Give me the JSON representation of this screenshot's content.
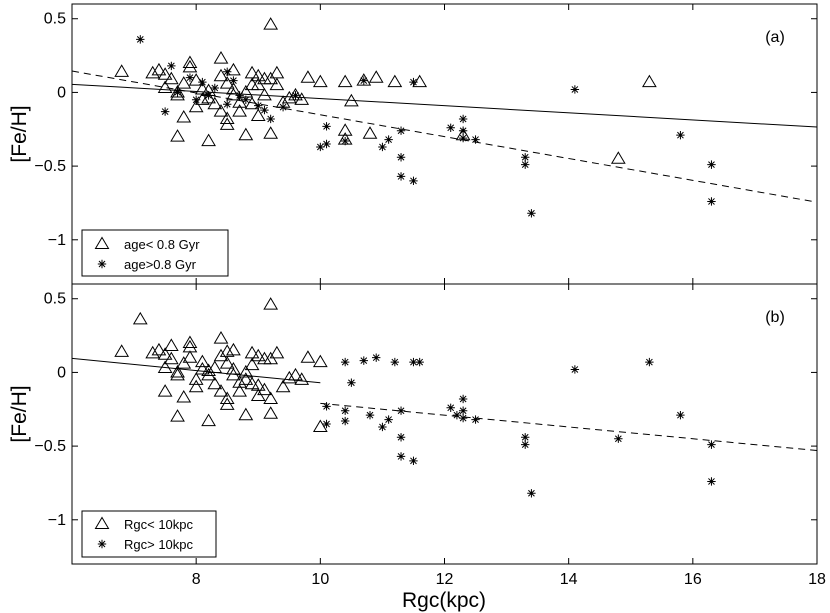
{
  "chart_data": {
    "type": "scatter",
    "xlabel": "Rgc(kpc)",
    "xlim": [
      6,
      18
    ],
    "xticks": [
      8,
      10,
      12,
      14,
      16,
      18
    ],
    "ylim": [
      -1.3,
      0.6
    ],
    "yticks": [
      0.5,
      0,
      -0.5,
      -1
    ],
    "yticklabels": [
      "0.5",
      "0",
      "−0.5",
      "−1"
    ],
    "panels": [
      {
        "id": "a",
        "tag": "(a)",
        "ylabel": "[Fe/H]",
        "legend": [
          {
            "marker": "triangle",
            "label": "age< 0.8 Gyr"
          },
          {
            "marker": "asterisk",
            "label": "age>0.8 Gyr"
          }
        ],
        "series": [
          {
            "name": "age< 0.8 Gyr",
            "marker": "triangle",
            "points": [
              [
                6.8,
                0.14
              ],
              [
                7.3,
                0.13
              ],
              [
                7.4,
                0.15
              ],
              [
                7.5,
                0.12
              ],
              [
                7.5,
                0.03
              ],
              [
                7.6,
                0.09
              ],
              [
                7.7,
                0.0
              ],
              [
                7.7,
                -0.02
              ],
              [
                7.7,
                -0.3
              ],
              [
                7.8,
                -0.17
              ],
              [
                7.8,
                0.06
              ],
              [
                7.9,
                0.17
              ],
              [
                7.9,
                0.2
              ],
              [
                8.0,
                -0.1
              ],
              [
                8.0,
                0.08
              ],
              [
                8.1,
                0.02
              ],
              [
                8.1,
                -0.05
              ],
              [
                8.2,
                0.01
              ],
              [
                8.2,
                -0.33
              ],
              [
                8.2,
                -0.04
              ],
              [
                8.3,
                -0.08
              ],
              [
                8.4,
                0.23
              ],
              [
                8.4,
                0.11
              ],
              [
                8.4,
                -0.13
              ],
              [
                8.5,
                -0.18
              ],
              [
                8.5,
                0.06
              ],
              [
                8.5,
                -0.22
              ],
              [
                8.6,
                -0.02
              ],
              [
                8.6,
                0.15
              ],
              [
                8.6,
                0.02
              ],
              [
                8.7,
                -0.07
              ],
              [
                8.7,
                -0.13
              ],
              [
                8.8,
                -0.29
              ],
              [
                8.8,
                0.0
              ],
              [
                8.9,
                0.05
              ],
              [
                8.9,
                -0.08
              ],
              [
                8.9,
                0.13
              ],
              [
                9.0,
                0.11
              ],
              [
                9.0,
                -0.16
              ],
              [
                9.0,
                0.05
              ],
              [
                9.1,
                0.09
              ],
              [
                9.1,
                -0.02
              ],
              [
                9.2,
                0.46
              ],
              [
                9.2,
                -0.28
              ],
              [
                9.2,
                0.09
              ],
              [
                9.3,
                0.13
              ],
              [
                9.3,
                0.05
              ],
              [
                9.4,
                -0.07
              ],
              [
                9.5,
                -0.04
              ],
              [
                9.6,
                -0.02
              ],
              [
                9.7,
                -0.05
              ],
              [
                9.8,
                0.1
              ],
              [
                10.0,
                0.07
              ],
              [
                10.4,
                -0.32
              ],
              [
                10.4,
                -0.26
              ],
              [
                10.4,
                0.07
              ],
              [
                10.5,
                -0.06
              ],
              [
                10.7,
                0.08
              ],
              [
                10.8,
                -0.28
              ],
              [
                10.9,
                0.1
              ],
              [
                11.2,
                0.07
              ],
              [
                11.6,
                0.07
              ],
              [
                12.3,
                -0.29
              ],
              [
                14.8,
                -0.45
              ],
              [
                15.3,
                0.07
              ]
            ]
          },
          {
            "name": "age>0.8 Gyr",
            "marker": "asterisk",
            "points": [
              [
                7.1,
                0.36
              ],
              [
                7.5,
                -0.13
              ],
              [
                7.6,
                0.18
              ],
              [
                7.7,
                0.0
              ],
              [
                7.9,
                0.1
              ],
              [
                8.0,
                -0.05
              ],
              [
                8.1,
                0.07
              ],
              [
                8.2,
                -0.02
              ],
              [
                8.3,
                0.03
              ],
              [
                8.5,
                -0.08
              ],
              [
                8.5,
                0.14
              ],
              [
                8.6,
                0.08
              ],
              [
                8.7,
                -0.02
              ],
              [
                8.8,
                -0.05
              ],
              [
                9.0,
                -0.09
              ],
              [
                9.1,
                -0.12
              ],
              [
                9.2,
                -0.18
              ],
              [
                9.4,
                -0.1
              ],
              [
                9.6,
                -0.02
              ],
              [
                10.0,
                -0.37
              ],
              [
                10.1,
                -0.35
              ],
              [
                10.1,
                -0.23
              ],
              [
                10.4,
                -0.33
              ],
              [
                10.7,
                0.08
              ],
              [
                11.0,
                -0.37
              ],
              [
                11.1,
                -0.32
              ],
              [
                11.3,
                -0.26
              ],
              [
                11.3,
                -0.44
              ],
              [
                11.3,
                -0.57
              ],
              [
                11.5,
                -0.6
              ],
              [
                11.5,
                0.07
              ],
              [
                12.1,
                -0.24
              ],
              [
                12.3,
                -0.26
              ],
              [
                12.3,
                -0.18
              ],
              [
                12.3,
                -0.31
              ],
              [
                12.5,
                -0.32
              ],
              [
                13.3,
                -0.44
              ],
              [
                13.3,
                -0.49
              ],
              [
                13.4,
                -0.82
              ],
              [
                14.1,
                0.02
              ],
              [
                15.8,
                -0.29
              ],
              [
                16.3,
                -0.49
              ],
              [
                16.3,
                -0.74
              ]
            ]
          }
        ],
        "fits": [
          {
            "style": "solid",
            "x": [
              6.0,
              18.0
            ],
            "y": [
              0.055,
              -0.235
            ]
          },
          {
            "style": "dashed",
            "x": [
              6.0,
              18.0
            ],
            "y": [
              0.145,
              -0.745
            ]
          }
        ]
      },
      {
        "id": "b",
        "tag": "(b)",
        "ylabel": "[Fe/H]",
        "legend": [
          {
            "marker": "triangle",
            "label": "Rgc< 10kpc"
          },
          {
            "marker": "asterisk",
            "label": "Rgc> 10kpc"
          }
        ],
        "series": [
          {
            "name": "Rgc< 10kpc",
            "marker": "triangle",
            "points": [
              [
                6.8,
                0.14
              ],
              [
                7.1,
                0.36
              ],
              [
                7.3,
                0.13
              ],
              [
                7.4,
                0.15
              ],
              [
                7.5,
                0.12
              ],
              [
                7.5,
                0.03
              ],
              [
                7.5,
                -0.13
              ],
              [
                7.6,
                0.18
              ],
              [
                7.6,
                0.09
              ],
              [
                7.7,
                0.0
              ],
              [
                7.7,
                -0.02
              ],
              [
                7.7,
                -0.3
              ],
              [
                7.8,
                -0.17
              ],
              [
                7.8,
                0.06
              ],
              [
                7.9,
                0.17
              ],
              [
                7.9,
                0.2
              ],
              [
                7.9,
                0.1
              ],
              [
                8.0,
                -0.1
              ],
              [
                8.0,
                -0.05
              ],
              [
                8.1,
                0.02
              ],
              [
                8.1,
                0.07
              ],
              [
                8.2,
                0.01
              ],
              [
                8.2,
                -0.33
              ],
              [
                8.2,
                -0.02
              ],
              [
                8.3,
                -0.08
              ],
              [
                8.3,
                0.03
              ],
              [
                8.4,
                0.23
              ],
              [
                8.4,
                0.11
              ],
              [
                8.4,
                -0.13
              ],
              [
                8.5,
                -0.18
              ],
              [
                8.5,
                0.06
              ],
              [
                8.5,
                0.14
              ],
              [
                8.5,
                -0.22
              ],
              [
                8.6,
                -0.02
              ],
              [
                8.6,
                0.15
              ],
              [
                8.6,
                0.02
              ],
              [
                8.7,
                -0.07
              ],
              [
                8.7,
                -0.13
              ],
              [
                8.8,
                -0.29
              ],
              [
                8.8,
                0.0
              ],
              [
                8.8,
                -0.05
              ],
              [
                8.9,
                0.05
              ],
              [
                8.9,
                -0.08
              ],
              [
                8.9,
                0.13
              ],
              [
                9.0,
                0.11
              ],
              [
                9.0,
                -0.16
              ],
              [
                9.0,
                -0.09
              ],
              [
                9.1,
                0.09
              ],
              [
                9.1,
                -0.12
              ],
              [
                9.2,
                0.46
              ],
              [
                9.2,
                -0.28
              ],
              [
                9.2,
                0.09
              ],
              [
                9.2,
                -0.18
              ],
              [
                9.3,
                0.13
              ],
              [
                9.4,
                -0.1
              ],
              [
                9.5,
                -0.04
              ],
              [
                9.6,
                -0.02
              ],
              [
                9.7,
                -0.05
              ],
              [
                9.8,
                0.1
              ],
              [
                10.0,
                0.07
              ],
              [
                10.0,
                -0.37
              ]
            ]
          },
          {
            "name": "Rgc> 10kpc",
            "marker": "asterisk",
            "points": [
              [
                10.1,
                -0.35
              ],
              [
                10.1,
                -0.23
              ],
              [
                10.4,
                -0.33
              ],
              [
                10.4,
                -0.26
              ],
              [
                10.4,
                0.07
              ],
              [
                10.5,
                -0.07
              ],
              [
                10.7,
                0.08
              ],
              [
                10.8,
                -0.29
              ],
              [
                10.9,
                0.1
              ],
              [
                11.0,
                -0.37
              ],
              [
                11.1,
                -0.32
              ],
              [
                11.2,
                0.07
              ],
              [
                11.3,
                -0.26
              ],
              [
                11.3,
                -0.44
              ],
              [
                11.3,
                -0.57
              ],
              [
                11.5,
                -0.6
              ],
              [
                11.5,
                0.07
              ],
              [
                11.6,
                0.07
              ],
              [
                12.1,
                -0.24
              ],
              [
                12.2,
                -0.29
              ],
              [
                12.3,
                -0.26
              ],
              [
                12.3,
                -0.18
              ],
              [
                12.3,
                -0.31
              ],
              [
                12.5,
                -0.32
              ],
              [
                13.3,
                -0.44
              ],
              [
                13.3,
                -0.49
              ],
              [
                13.4,
                -0.82
              ],
              [
                14.1,
                0.02
              ],
              [
                14.8,
                -0.45
              ],
              [
                15.3,
                0.07
              ],
              [
                15.8,
                -0.29
              ],
              [
                16.3,
                -0.49
              ],
              [
                16.3,
                -0.74
              ]
            ]
          }
        ],
        "fits": [
          {
            "style": "solid",
            "x": [
              6.0,
              10.0
            ],
            "y": [
              0.095,
              -0.07
            ]
          },
          {
            "style": "dashed",
            "x": [
              10.0,
              18.0
            ],
            "y": [
              -0.21,
              -0.53
            ]
          }
        ]
      }
    ]
  }
}
